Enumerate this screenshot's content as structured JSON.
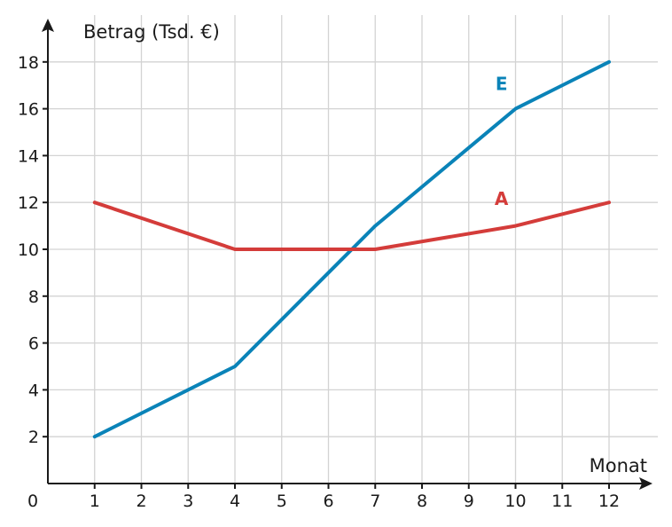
{
  "chart_data": {
    "type": "line",
    "title": "",
    "xlabel": "Monat",
    "ylabel": "Betrag (Tsd. €)",
    "origin_label": "0",
    "x": [
      1,
      2,
      3,
      4,
      5,
      6,
      7,
      8,
      9,
      10,
      11,
      12
    ],
    "x_ticks": [
      "1",
      "2",
      "3",
      "4",
      "5",
      "6",
      "7",
      "8",
      "9",
      "10",
      "11",
      "12"
    ],
    "y_ticks": [
      "2",
      "4",
      "6",
      "8",
      "10",
      "12",
      "14",
      "16",
      "18"
    ],
    "xlim": [
      0,
      13
    ],
    "ylim": [
      0,
      19
    ],
    "grid": true,
    "series": [
      {
        "name": "E",
        "color": "#0a83b8",
        "points": [
          [
            1,
            2
          ],
          [
            4,
            5
          ],
          [
            7,
            11
          ],
          [
            10,
            16
          ],
          [
            12,
            18
          ]
        ],
        "label_at": [
          9.7,
          16.8
        ]
      },
      {
        "name": "A",
        "color": "#d43c3a",
        "points": [
          [
            1,
            12
          ],
          [
            4,
            10
          ],
          [
            7,
            10
          ],
          [
            10,
            11
          ],
          [
            12,
            12
          ]
        ],
        "label_at": [
          9.7,
          11.9
        ]
      }
    ]
  }
}
